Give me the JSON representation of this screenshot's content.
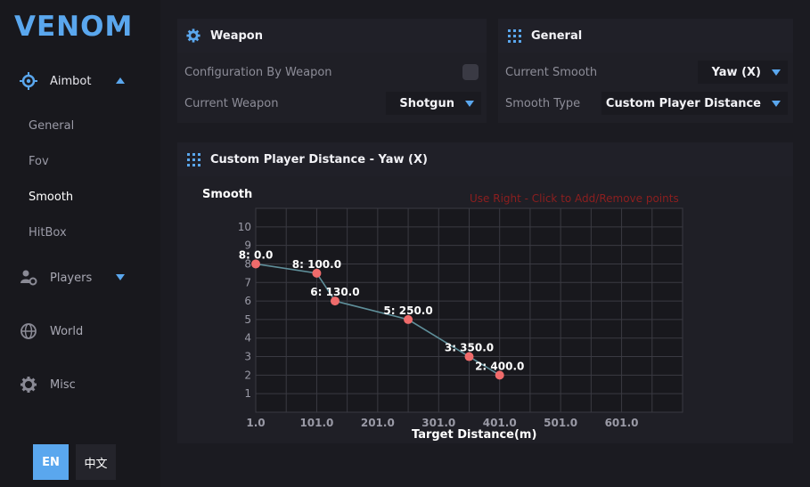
{
  "sidebar": {
    "logo": "VENOM",
    "nav": [
      {
        "label": "Aimbot",
        "icon": "crosshair-icon"
      },
      {
        "label": "Players",
        "icon": "users-gear-icon"
      },
      {
        "label": "World",
        "icon": "globe-icon"
      },
      {
        "label": "Misc",
        "icon": "gear-icon"
      }
    ],
    "aimbot_sub": [
      "General",
      "Fov",
      "Smooth",
      "HitBox"
    ],
    "active_sub": "Smooth",
    "lang": {
      "en": "EN",
      "zh": "中文"
    }
  },
  "weapon_panel": {
    "title": "Weapon",
    "config_by_weapon_label": "Configuration By Weapon",
    "current_weapon_label": "Current Weapon",
    "current_weapon_value": "Shotgun"
  },
  "general_panel": {
    "title": "General",
    "current_smooth_label": "Current Smooth",
    "current_smooth_value": "Yaw (X)",
    "smooth_type_label": "Smooth Type",
    "smooth_type_value": "Custom Player Distance"
  },
  "curve_panel": {
    "title": "Custom Player Distance - Yaw (X)",
    "hint": "Use Right - Click to Add/Remove points"
  },
  "chart_data": {
    "type": "line",
    "title": "Custom Player Distance - Yaw (X)",
    "xlabel": "Target Distance(m)",
    "ylabel": "Smooth",
    "x_ticks": [
      "1.0",
      "101.0",
      "201.0",
      "301.0",
      "401.0",
      "501.0",
      "601.0"
    ],
    "x_range": [
      1,
      701
    ],
    "y_ticks": [
      "1",
      "2",
      "3",
      "4",
      "5",
      "6",
      "7",
      "8",
      "9",
      "10"
    ],
    "y_range": [
      0,
      11
    ],
    "points": [
      {
        "x": 1,
        "y": 8,
        "label": "8: 0.0"
      },
      {
        "x": 101,
        "y": 7.5,
        "label": "8: 100.0"
      },
      {
        "x": 131,
        "y": 6,
        "label": "6: 130.0"
      },
      {
        "x": 251,
        "y": 5,
        "label": "5: 250.0"
      },
      {
        "x": 351,
        "y": 3,
        "label": "3: 350.0"
      },
      {
        "x": 401,
        "y": 2,
        "label": "2: 400.0"
      }
    ],
    "colors": {
      "line": "#5f8f9a",
      "point": "#ef6b6b",
      "grid": "#3a3a42"
    }
  }
}
